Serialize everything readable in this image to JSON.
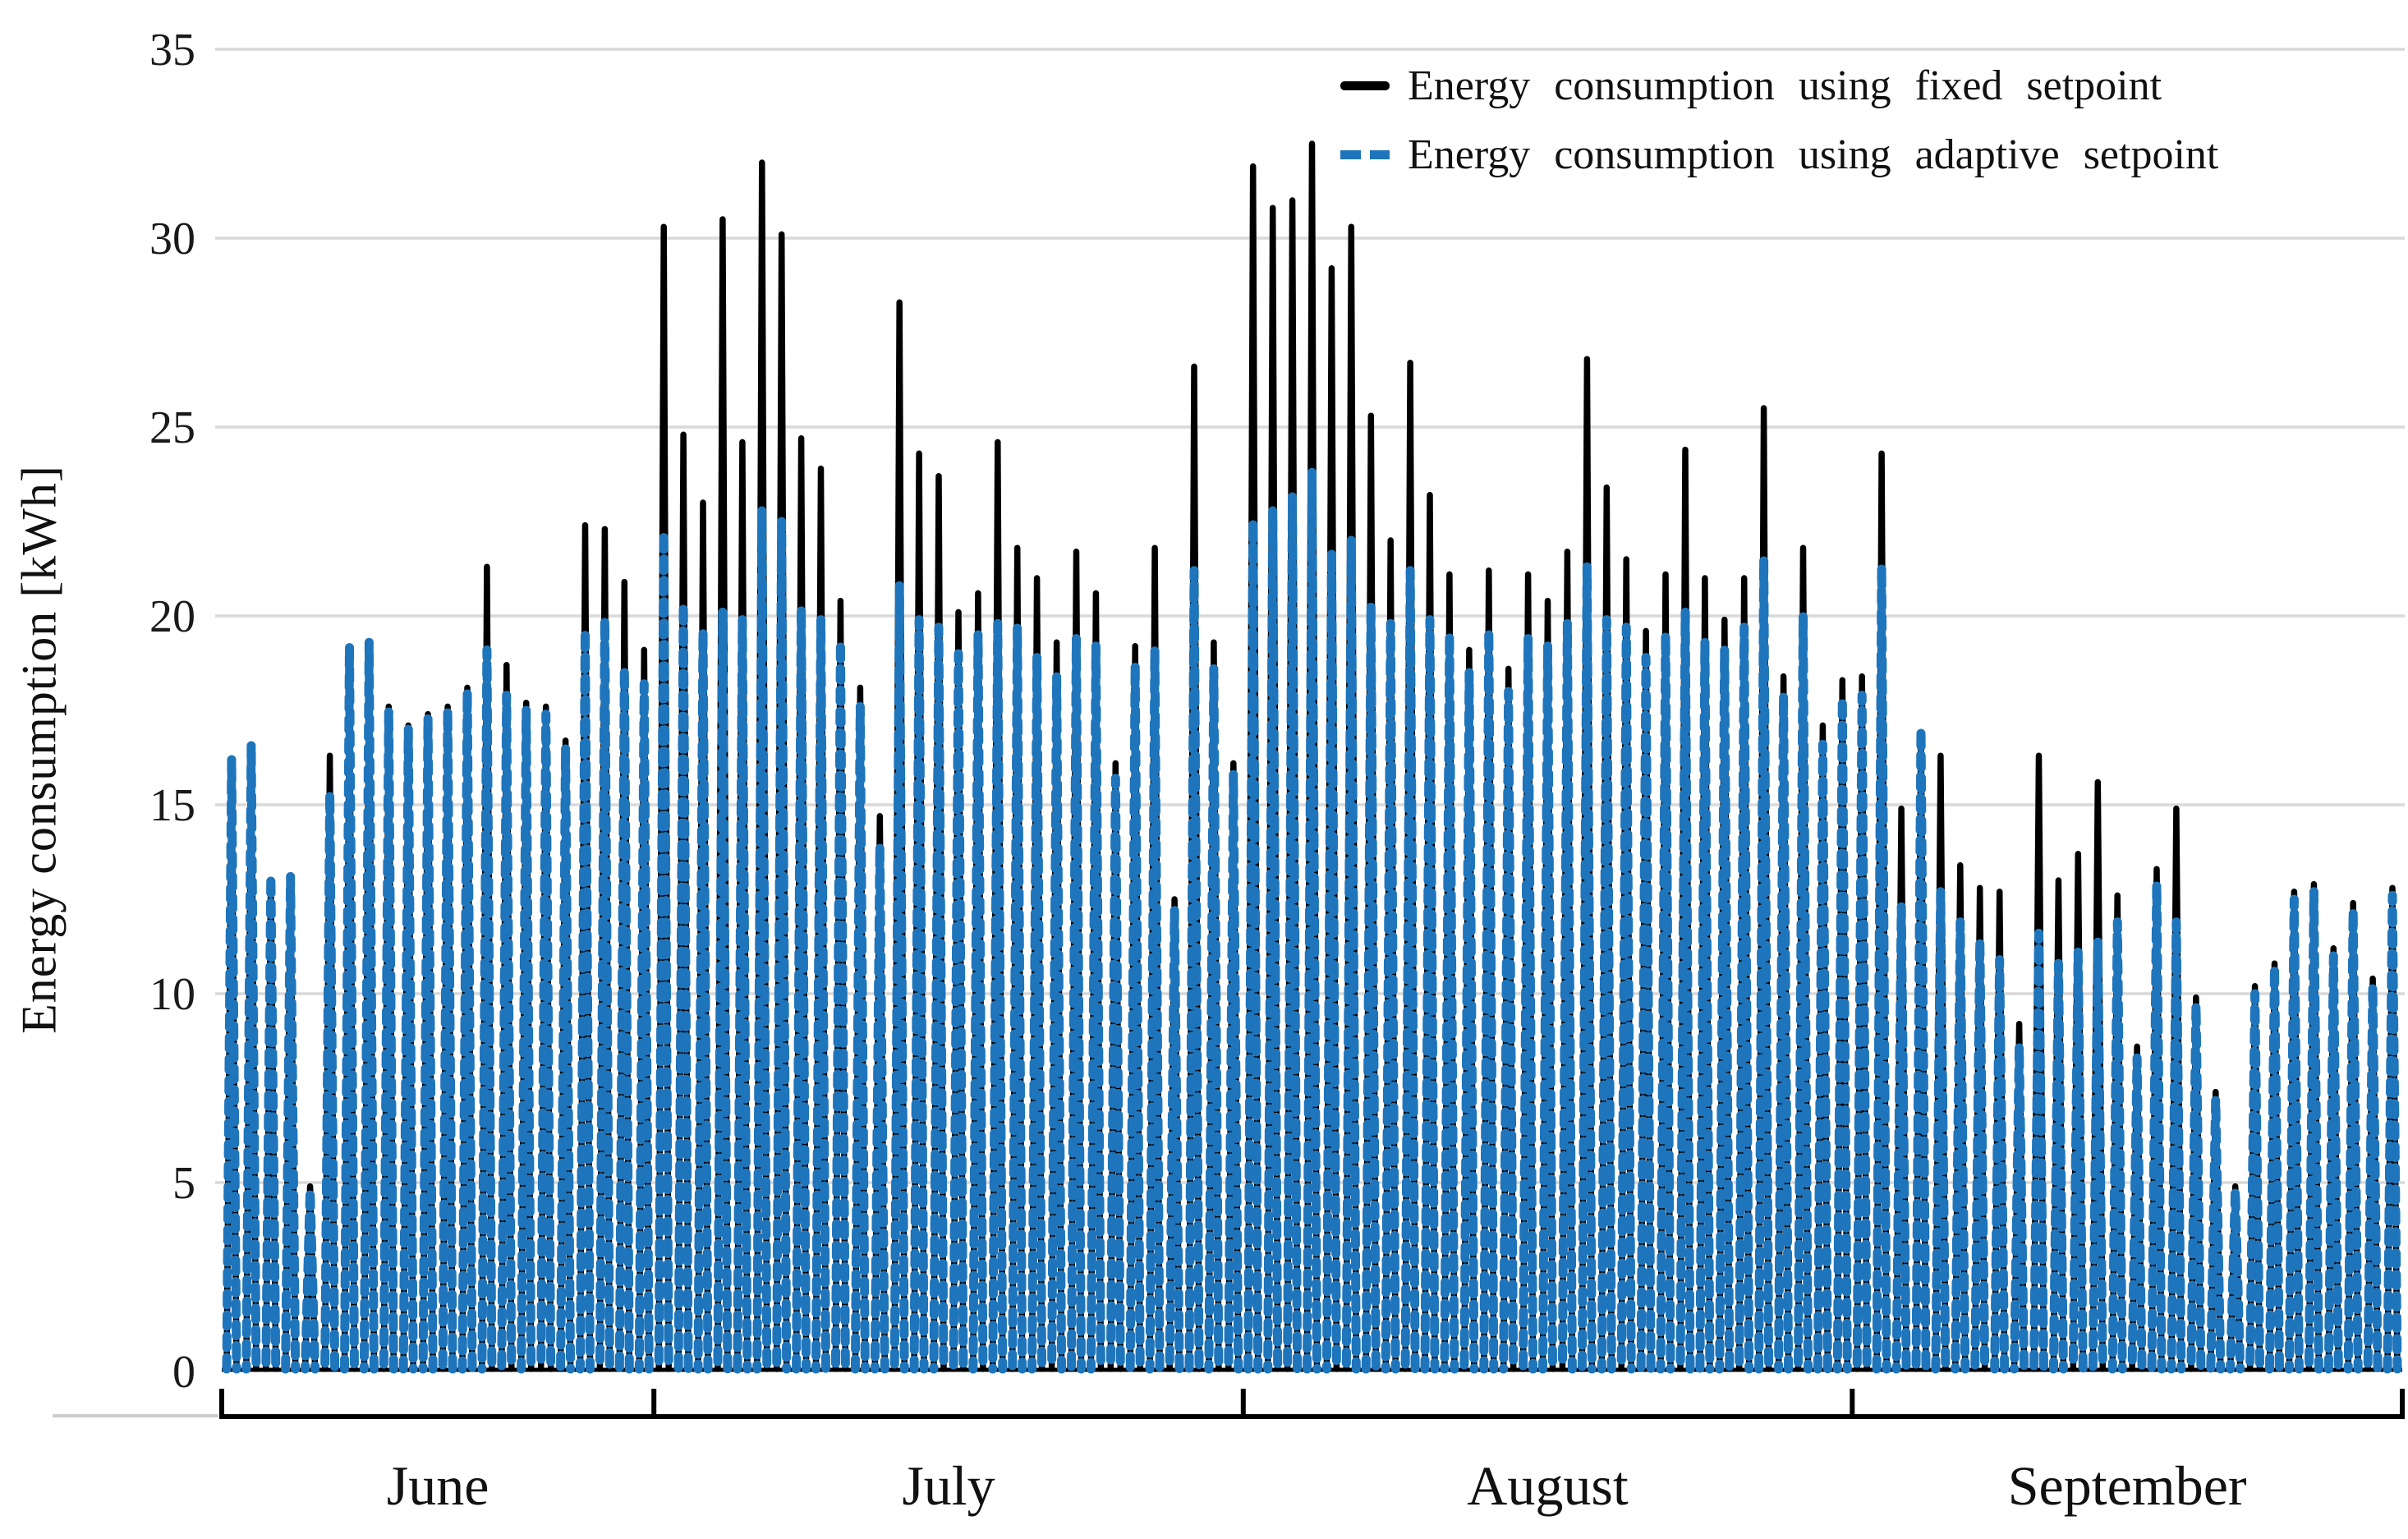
{
  "figure": {
    "background": "#ffffff",
    "gridline_color": "#d9d9d9",
    "axis_color": "#000000"
  },
  "y_axis": {
    "title": "Energy consumption [kWh]",
    "min": 0,
    "max": 35,
    "tick_step": 5,
    "tick_labels": [
      "0",
      "5",
      "10",
      "15",
      "20",
      "25",
      "30",
      "35"
    ]
  },
  "x_axis": {
    "month_labels": [
      "June",
      "July",
      "August",
      "September"
    ]
  },
  "legend": {
    "items": [
      {
        "label": "Energy consumption using fixed setpoint",
        "color": "#000000",
        "style": "solid"
      },
      {
        "label": "Energy consumption using adaptive setpoint",
        "color": "#1f75bc",
        "style": "dashed"
      }
    ]
  },
  "chart_data": {
    "type": "line",
    "title": "",
    "xlabel": "",
    "ylabel": "Energy consumption [kWh]",
    "ylim": [
      0,
      35
    ],
    "yticks": [
      0,
      5,
      10,
      15,
      20,
      25,
      30,
      35
    ],
    "grid": "horizontal",
    "legend_position": "top-right",
    "daily_pattern": "each day the consumption rises from ~0 kWh to the daily peak and falls back to ~0 kWh, producing one narrow spike per day",
    "x_months": [
      {
        "label": "June",
        "days": 22
      },
      {
        "label": "July",
        "days": 30
      },
      {
        "label": "August",
        "days": 31
      },
      {
        "label": "September",
        "days": 28
      }
    ],
    "series": [
      {
        "name": "Energy consumption using fixed setpoint",
        "color": "#000000",
        "line_style": "solid",
        "daily_peaks_kwh": [
          16.2,
          16.5,
          13.0,
          13.1,
          4.9,
          16.3,
          17.8,
          18.6,
          17.6,
          17.1,
          17.4,
          17.6,
          18.1,
          21.3,
          18.7,
          17.7,
          17.6,
          16.7,
          22.4,
          22.3,
          20.9,
          19.1,
          30.3,
          24.8,
          23.0,
          30.5,
          24.6,
          32.0,
          30.1,
          24.7,
          23.9,
          20.4,
          18.1,
          14.7,
          28.3,
          24.3,
          23.7,
          20.1,
          20.6,
          24.6,
          21.8,
          21.0,
          19.3,
          21.7,
          20.6,
          16.1,
          19.2,
          21.8,
          12.5,
          26.6,
          19.3,
          16.1,
          31.9,
          30.8,
          31.0,
          32.5,
          29.2,
          30.3,
          25.3,
          22.0,
          26.7,
          23.2,
          21.1,
          19.1,
          21.2,
          18.6,
          21.1,
          20.4,
          21.7,
          26.8,
          23.4,
          21.5,
          19.6,
          21.1,
          24.4,
          21.0,
          19.9,
          21.0,
          25.5,
          18.4,
          21.8,
          17.1,
          18.3,
          18.4,
          24.3,
          14.9,
          16.9,
          16.3,
          13.4,
          12.8,
          12.7,
          9.2,
          16.3,
          13.0,
          13.7,
          15.6,
          12.6,
          8.6,
          13.3,
          14.9,
          9.9,
          7.4,
          4.9,
          10.2,
          10.8,
          12.7,
          12.9,
          11.2,
          12.4,
          10.4,
          12.8
        ]
      },
      {
        "name": "Energy consumption using adaptive setpoint",
        "color": "#1f75bc",
        "line_style": "dashed",
        "daily_peaks_kwh": [
          16.2,
          16.6,
          13.1,
          13.1,
          4.8,
          15.3,
          19.2,
          19.3,
          17.5,
          17.0,
          17.3,
          17.5,
          18.0,
          19.1,
          17.9,
          17.5,
          17.4,
          16.5,
          19.6,
          19.9,
          18.6,
          18.2,
          22.2,
          20.3,
          19.6,
          20.1,
          19.9,
          22.8,
          22.5,
          20.2,
          19.9,
          19.3,
          17.6,
          13.9,
          20.8,
          19.9,
          19.7,
          19.0,
          19.5,
          19.8,
          19.7,
          18.9,
          18.4,
          19.4,
          19.2,
          15.7,
          18.7,
          19.1,
          12.2,
          21.2,
          18.6,
          15.8,
          22.5,
          22.8,
          23.2,
          23.8,
          21.7,
          22.0,
          20.3,
          19.8,
          21.2,
          19.9,
          19.5,
          18.5,
          19.6,
          18.0,
          19.4,
          19.2,
          19.8,
          21.3,
          19.9,
          19.7,
          18.9,
          19.5,
          20.1,
          19.3,
          19.1,
          19.7,
          21.5,
          17.9,
          20.0,
          16.6,
          17.8,
          17.9,
          21.3,
          12.3,
          17.0,
          12.7,
          11.9,
          11.4,
          10.9,
          8.6,
          11.6,
          10.8,
          11.1,
          11.4,
          11.9,
          8.3,
          12.9,
          11.9,
          9.7,
          7.2,
          4.8,
          10.0,
          10.7,
          12.5,
          12.7,
          11.0,
          12.2,
          10.2,
          12.6
        ]
      }
    ]
  }
}
